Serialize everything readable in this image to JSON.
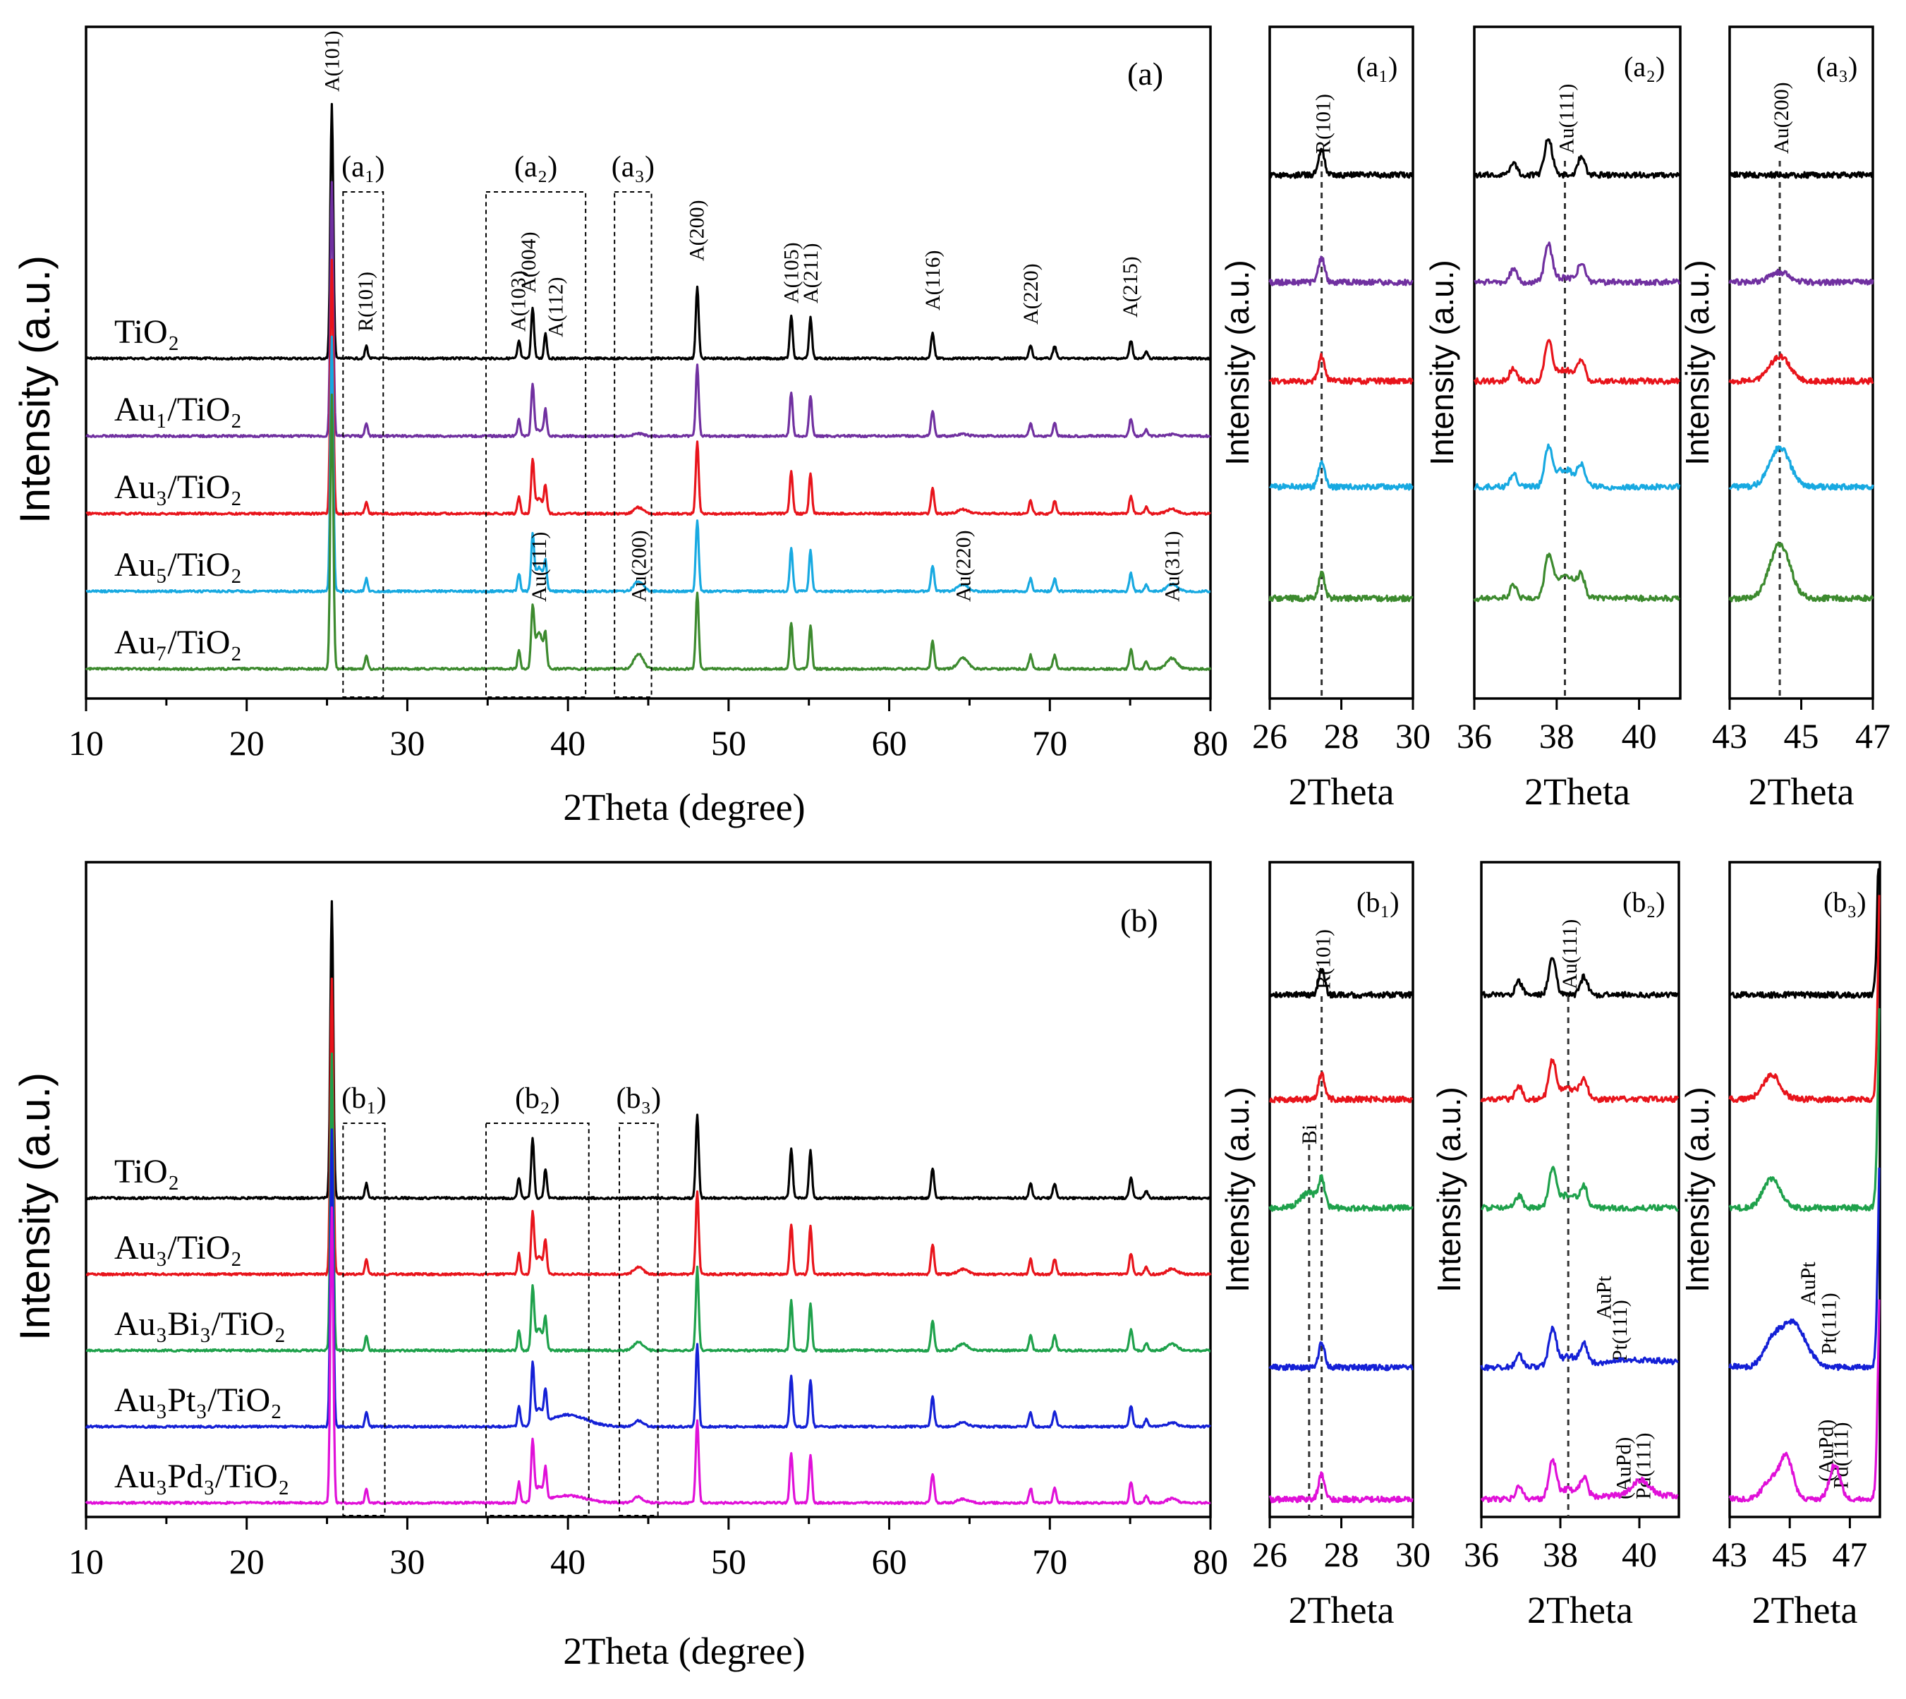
{
  "chart_data": [
    {
      "id": "a",
      "type": "line",
      "panel_tag": "(a)",
      "xlabel": "2Theta (degree)",
      "ylabel": "Intensity (a.u.)",
      "xlim": [
        10,
        80
      ],
      "xticks": [
        "10",
        "20",
        "30",
        "40",
        "50",
        "60",
        "70",
        "80"
      ],
      "series": [
        {
          "name": "TiO₂",
          "color": "#000000",
          "scale": 1.0
        },
        {
          "name": "Au₁/TiO₂",
          "color": "#7030a0",
          "scale": 1.0,
          "au": 0.2
        },
        {
          "name": "Au₃/TiO₂",
          "color": "#e8141b",
          "scale": 1.0,
          "au": 0.5
        },
        {
          "name": "Au₅/TiO₂",
          "color": "#17a9e1",
          "scale": 1.0,
          "au": 0.8
        },
        {
          "name": "Au₇/TiO₂",
          "color": "#3c8a2e",
          "scale": 1.0,
          "au": 1.1
        }
      ],
      "peak_labels": [
        {
          "text": "A(101)",
          "x": 25.3
        },
        {
          "text": "R(101)",
          "x": 27.4
        },
        {
          "text": "A(103)",
          "x": 36.9
        },
        {
          "text": "A(004)",
          "x": 37.8
        },
        {
          "text": "A(112)",
          "x": 38.6
        },
        {
          "text": "A(200)",
          "x": 48.0
        },
        {
          "text": "A(105)",
          "x": 53.9
        },
        {
          "text": "A(211)",
          "x": 55.1
        },
        {
          "text": "A(116)",
          "x": 62.7
        },
        {
          "text": "A(220)",
          "x": 68.8
        },
        {
          "text": "A(215)",
          "x": 75.0
        },
        {
          "text": "Au(111)",
          "x": 38.2
        },
        {
          "text": "Au(200)",
          "x": 44.4
        },
        {
          "text": "Au(220)",
          "x": 64.6
        },
        {
          "text": "Au(311)",
          "x": 77.6
        }
      ],
      "zones": [
        {
          "tag": "(a₁)",
          "x0": 26.0,
          "x1": 28.5
        },
        {
          "tag": "(a₂)",
          "x0": 34.9,
          "x1": 41.1
        },
        {
          "tag": "(a₃)",
          "x0": 42.9,
          "x1": 45.2
        }
      ]
    },
    {
      "id": "b",
      "type": "line",
      "panel_tag": "(b)",
      "xlabel": "2Theta (degree)",
      "ylabel": "Intensity (a.u.)",
      "xlim": [
        10,
        80
      ],
      "xticks": [
        "10",
        "20",
        "30",
        "40",
        "50",
        "60",
        "70",
        "80"
      ],
      "series": [
        {
          "name": "TiO₂",
          "color": "#000000",
          "scale": 1.0
        },
        {
          "name": "Au₃/TiO₂",
          "color": "#e8141b",
          "scale": 1.0,
          "au": 0.5
        },
        {
          "name": "Au₃Bi₃/TiO₂",
          "color": "#1ea14b",
          "scale": 1.0,
          "au": 0.6
        },
        {
          "name": "Au₃Pt₃/TiO₂",
          "color": "#1420d6",
          "scale": 1.0,
          "au": 0.4,
          "broad": 1.0
        },
        {
          "name": "Au₃Pd₃/TiO₂",
          "color": "#e010d8",
          "scale": 1.0,
          "au": 0.4,
          "broad": 0.6
        }
      ],
      "zones": [
        {
          "tag": "(b₁)",
          "x0": 26.0,
          "x1": 28.6
        },
        {
          "tag": "(b₂)",
          "x0": 34.9,
          "x1": 41.3
        },
        {
          "tag": "(b₃)",
          "x0": 43.2,
          "x1": 45.6
        }
      ]
    }
  ],
  "zoom_panels": [
    {
      "id": "a1",
      "tag": "(a₁)",
      "xlim": [
        26,
        30
      ],
      "xticks": [
        "26",
        "28",
        "30"
      ],
      "xlabel": "2Theta",
      "ylabel": "Intensity (a.u.)",
      "ref_x": 27.45,
      "ref_label": "R(101)"
    },
    {
      "id": "a2",
      "tag": "(a₂)",
      "xlim": [
        36,
        41
      ],
      "xticks": [
        "36",
        "38",
        "40"
      ],
      "xlabel": "2Theta",
      "ylabel": "Intensity (a.u.)",
      "ref_x": 38.2,
      "ref_label": "Au(111)"
    },
    {
      "id": "a3",
      "tag": "(a₃)",
      "xlim": [
        43,
        47
      ],
      "xticks": [
        "43",
        "45",
        "47"
      ],
      "xlabel": "2Theta",
      "ylabel": "Intensity (a.u.)",
      "ref_x": 44.4,
      "ref_label": "Au(200)"
    },
    {
      "id": "b1",
      "tag": "(b₁)",
      "xlim": [
        26,
        30
      ],
      "xticks": [
        "26",
        "28",
        "30"
      ],
      "xlabel": "2Theta",
      "ylabel": "Intensity (a.u.)",
      "ref_x": 27.45,
      "ref_label": "R(101)",
      "extra_label": "Bi"
    },
    {
      "id": "b2",
      "tag": "(b₂)",
      "xlim": [
        36,
        41
      ],
      "xticks": [
        "36",
        "38",
        "40"
      ],
      "xlabel": "2Theta",
      "ylabel": "Intensity (a.u.)",
      "ref_x": 38.2,
      "ref_label": "Au(111)",
      "extra_labels": [
        "AuPt",
        "Pt(111)",
        "(AuPd)",
        "Pd(111)"
      ]
    },
    {
      "id": "b3",
      "tag": "(b₃)",
      "xlim": [
        43,
        48
      ],
      "xticks": [
        "43",
        "45",
        "47"
      ],
      "xlabel": "2Theta",
      "ylabel": "Intensity (a.u.)",
      "extra_labels": [
        "AuPt",
        "Pt(111)",
        "(AuPd)",
        "Pd(111)"
      ]
    }
  ]
}
